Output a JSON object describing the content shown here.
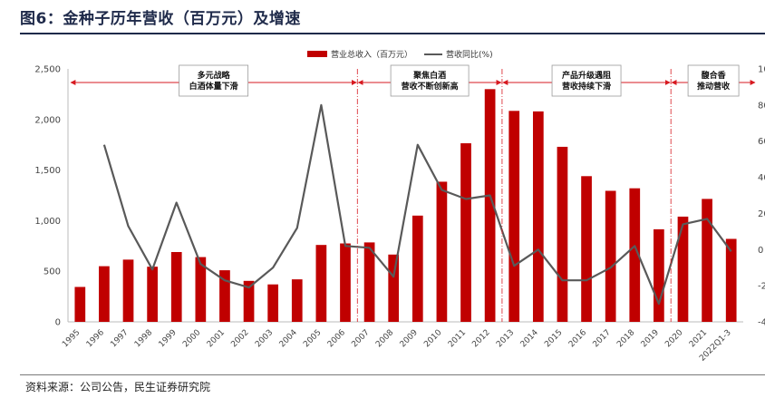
{
  "header": {
    "title": "图6：金种子历年营收（百万元）及增速"
  },
  "footer": {
    "source": "资料来源：公司公告，民生证券研究院"
  },
  "colors": {
    "bar": "#c00000",
    "line": "#595959",
    "arrow": "#d71920",
    "title": "#1f2a4a"
  },
  "chart_data": {
    "type": "bar",
    "categories": [
      "1995",
      "1996",
      "1997",
      "1998",
      "1999",
      "2000",
      "2001",
      "2002",
      "2003",
      "2004",
      "2005",
      "2006",
      "2007",
      "2008",
      "2009",
      "2010",
      "2011",
      "2012",
      "2013",
      "2014",
      "2015",
      "2016",
      "2017",
      "2018",
      "2019",
      "2020",
      "2021",
      "2022Q1-3"
    ],
    "series": [
      {
        "name": "营业总收入（百万元）",
        "type": "bar",
        "axis": "left",
        "values": [
          345,
          550,
          615,
          545,
          690,
          640,
          510,
          405,
          370,
          420,
          760,
          775,
          785,
          665,
          1050,
          1385,
          1765,
          2300,
          2085,
          2080,
          1730,
          1440,
          1295,
          1320,
          915,
          1040,
          1215,
          820
        ]
      },
      {
        "name": "营收同比(%)",
        "type": "line",
        "axis": "right",
        "values": [
          null,
          58,
          13,
          -11,
          26,
          -8,
          -17,
          -21,
          -10,
          12,
          80,
          2,
          1,
          -15,
          58,
          33,
          28,
          30,
          -9,
          0,
          -17,
          -17,
          -10,
          2,
          -30,
          14,
          17,
          -1
        ]
      }
    ],
    "y_left": {
      "min": 0,
      "max": 2500,
      "ticks": [
        "0",
        "500",
        "1,000",
        "1,500",
        "2,000",
        "2,500"
      ]
    },
    "y_right": {
      "min": -40,
      "max": 100,
      "ticks": [
        "-40",
        "-20",
        "0",
        "20",
        "40",
        "60",
        "80",
        "100"
      ]
    },
    "legend": {
      "position": "top-center"
    },
    "annotations": [
      {
        "lines": [
          "多元战略",
          "白酒体量下滑"
        ],
        "from": "1995",
        "to": "2006"
      },
      {
        "lines": [
          "聚焦白酒",
          "营收不断创新高"
        ],
        "from": "2006",
        "to": "2012"
      },
      {
        "lines": [
          "产品升级遇阻",
          "营收持续下滑"
        ],
        "from": "2012",
        "to": "2019"
      },
      {
        "lines": [
          "馥合香",
          "推动营收"
        ],
        "from": "2019",
        "to": "2022Q1-3"
      }
    ]
  }
}
